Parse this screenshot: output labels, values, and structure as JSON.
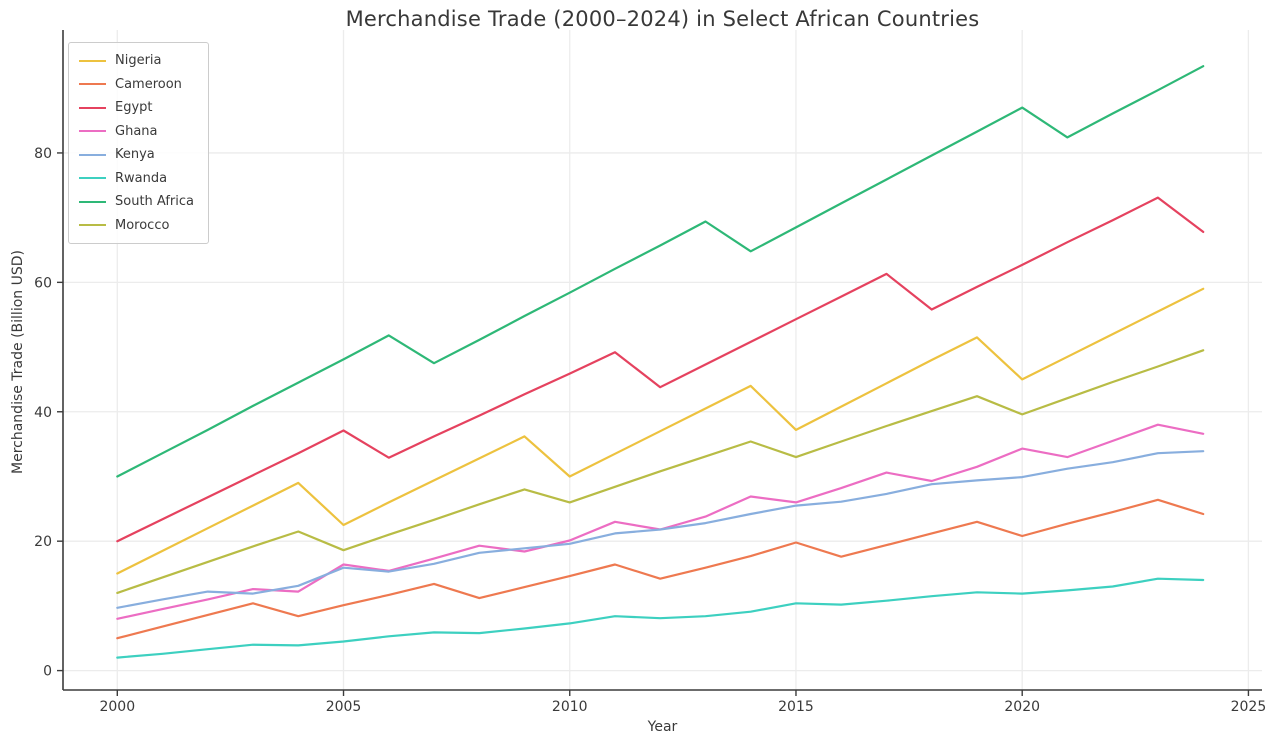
{
  "chart_data": {
    "type": "line",
    "title": "Merchandise Trade (2000–2024) in Select African Countries",
    "xlabel": "Year",
    "ylabel": "Merchandise Trade (Billion USD)",
    "x_ticks": [
      2000,
      2005,
      2010,
      2015,
      2020,
      2025
    ],
    "y_ticks": [
      0,
      20,
      40,
      60,
      80
    ],
    "xlim": [
      1998.8,
      2025.3
    ],
    "ylim": [
      -3,
      99
    ],
    "grid": true,
    "legend_position": "upper-left",
    "years": [
      2000,
      2001,
      2002,
      2003,
      2004,
      2005,
      2006,
      2007,
      2008,
      2009,
      2010,
      2011,
      2012,
      2013,
      2014,
      2015,
      2016,
      2017,
      2018,
      2019,
      2020,
      2021,
      2022,
      2023,
      2024
    ],
    "series": [
      {
        "name": "Nigeria",
        "color": "#edc23f",
        "values": [
          15.0,
          18.5,
          22.0,
          25.5,
          29.0,
          22.5,
          26.0,
          29.4,
          32.8,
          36.2,
          30.0,
          33.5,
          37.0,
          40.5,
          44.0,
          37.2,
          40.8,
          44.4,
          48.0,
          51.5,
          45.0,
          48.5,
          52.0,
          55.5,
          59.0
        ]
      },
      {
        "name": "Cameroon",
        "color": "#ee7950",
        "values": [
          5.0,
          6.8,
          8.6,
          10.4,
          8.4,
          10.1,
          11.7,
          13.4,
          11.2,
          12.9,
          14.6,
          16.4,
          14.2,
          15.9,
          17.7,
          19.8,
          17.6,
          19.4,
          21.2,
          23.0,
          20.8,
          22.7,
          24.5,
          26.4,
          24.2
        ]
      },
      {
        "name": "Egypt",
        "color": "#e5425f",
        "values": [
          20.0,
          23.4,
          26.8,
          30.2,
          33.6,
          37.1,
          32.9,
          36.2,
          39.4,
          42.7,
          45.9,
          49.2,
          43.8,
          47.3,
          50.8,
          54.3,
          57.8,
          61.3,
          55.8,
          59.3,
          62.7,
          66.2,
          69.6,
          73.1,
          67.8
        ]
      },
      {
        "name": "Ghana",
        "color": "#ec6dc3",
        "values": [
          8.0,
          9.5,
          11.0,
          12.6,
          12.2,
          16.4,
          15.4,
          17.3,
          19.3,
          18.4,
          20.1,
          23.0,
          21.8,
          23.8,
          26.9,
          26.0,
          28.2,
          30.6,
          29.3,
          31.5,
          34.3,
          33.0,
          35.5,
          38.0,
          36.6
        ]
      },
      {
        "name": "Kenya",
        "color": "#88aede",
        "values": [
          9.7,
          11.0,
          12.2,
          11.9,
          13.1,
          15.9,
          15.3,
          16.5,
          18.2,
          18.9,
          19.6,
          21.2,
          21.8,
          22.8,
          24.2,
          25.5,
          26.1,
          27.3,
          28.8,
          29.4,
          29.9,
          31.2,
          32.2,
          33.6,
          33.9
        ]
      },
      {
        "name": "Rwanda",
        "color": "#3dd0c0",
        "values": [
          2.0,
          2.6,
          3.3,
          4.0,
          3.9,
          4.5,
          5.3,
          5.9,
          5.8,
          6.5,
          7.3,
          8.4,
          8.1,
          8.4,
          9.1,
          10.4,
          10.2,
          10.8,
          11.5,
          12.1,
          11.9,
          12.4,
          13.0,
          14.2,
          14.0
        ]
      },
      {
        "name": "South Africa",
        "color": "#2eb877",
        "values": [
          30.0,
          33.6,
          37.2,
          40.9,
          44.5,
          48.1,
          51.8,
          47.5,
          51.1,
          54.8,
          58.4,
          62.1,
          65.7,
          69.4,
          64.8,
          68.5,
          72.2,
          75.9,
          79.6,
          83.3,
          87.0,
          82.4,
          86.1,
          89.7,
          93.4
        ]
      },
      {
        "name": "Morocco",
        "color": "#b8bc45",
        "values": [
          12.0,
          14.4,
          16.8,
          19.2,
          21.5,
          18.6,
          21.0,
          23.3,
          25.7,
          28.0,
          26.0,
          28.4,
          30.8,
          33.1,
          35.4,
          33.0,
          35.4,
          37.8,
          40.1,
          42.4,
          39.6,
          42.1,
          44.6,
          47.0,
          49.5
        ]
      }
    ],
    "style": {
      "grid_color": "#ececec",
      "spine_color": "#3c3c3c",
      "tick_text_color": "#3a3a3a",
      "background": "#ffffff"
    }
  }
}
